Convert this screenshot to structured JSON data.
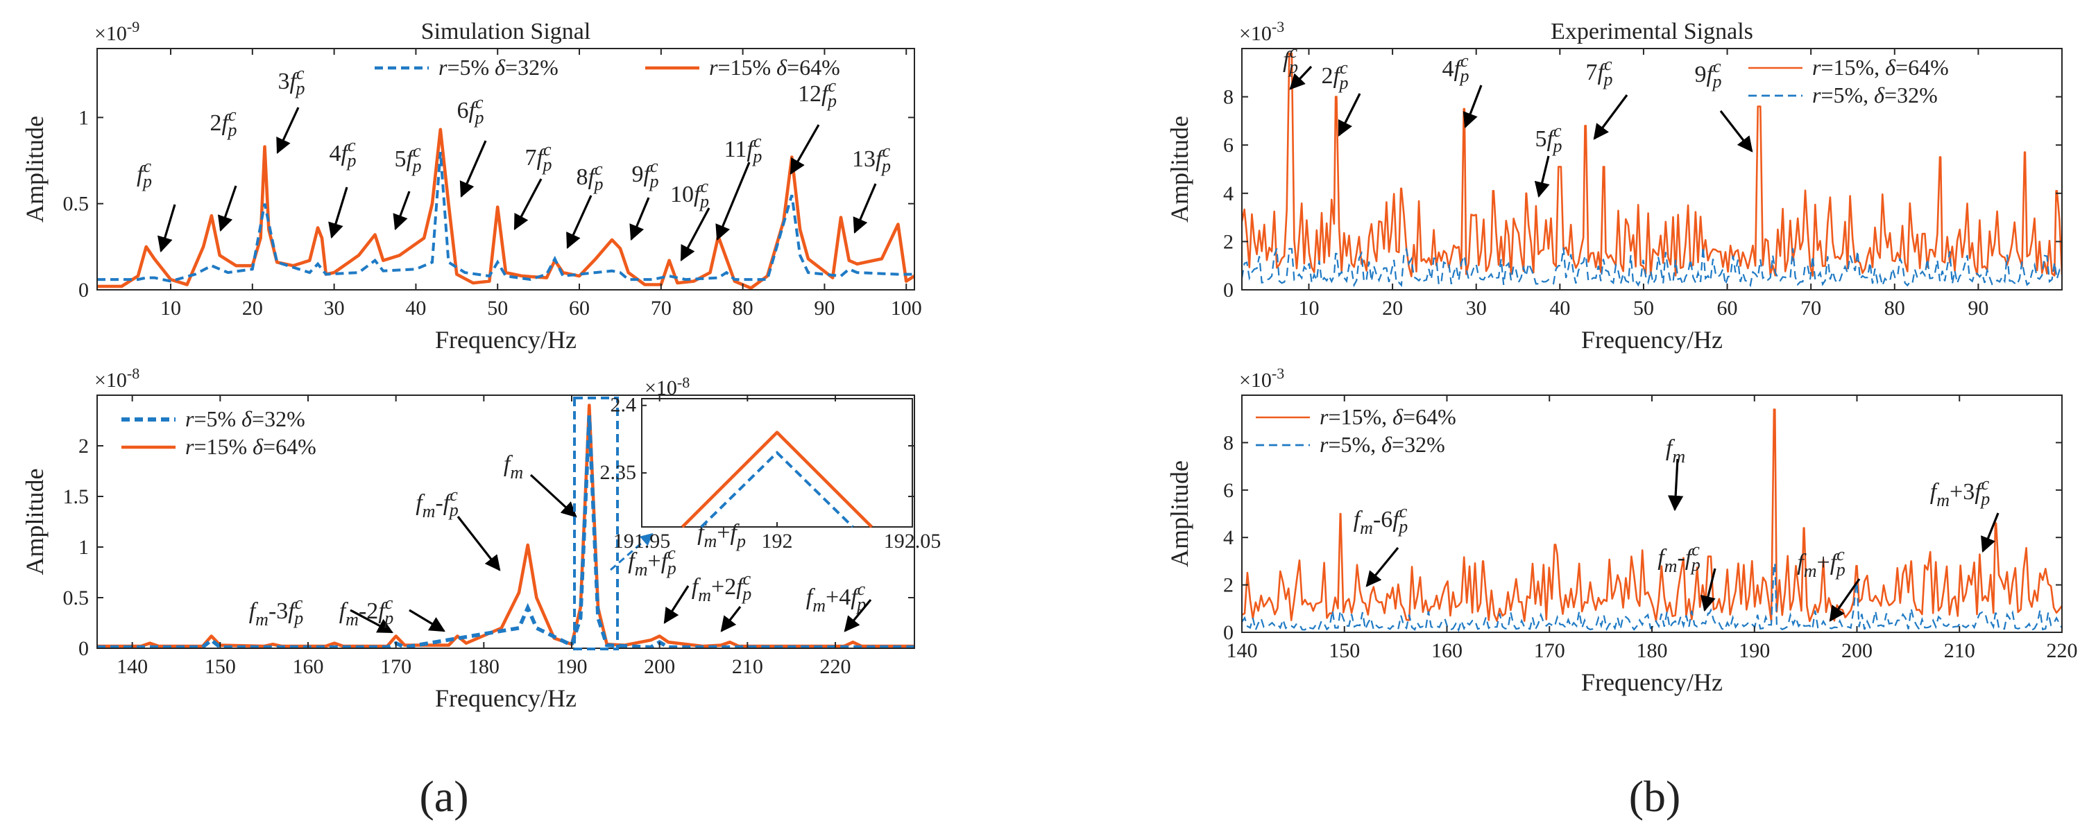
{
  "panel_labels": [
    "(a)",
    "(b)"
  ],
  "colors": {
    "series_r15": "#ef5b1c",
    "series_r5": "#1f7ac4",
    "axis": "#262626",
    "arrow": "#000000"
  },
  "chart_data": [
    {
      "id": "a1",
      "type": "line",
      "title": "Simulation Signal",
      "xlabel": "Frequency/Hz",
      "ylabel": "Amplitude",
      "multiplier": "×10",
      "exponent": "-9",
      "xlim": [
        1,
        101
      ],
      "ylim": [
        0,
        1.4
      ],
      "xticks": [
        10,
        20,
        30,
        40,
        50,
        60,
        70,
        80,
        90,
        100
      ],
      "yticks": [
        0,
        0.5,
        1
      ],
      "legend": [
        {
          "series": "blue",
          "r": "r",
          "rval": "=5% ",
          "d": "δ",
          "dval": "=32%"
        },
        {
          "series": "orange",
          "r": "r",
          "rval": "=15% ",
          "d": "δ",
          "dval": "=64%"
        }
      ],
      "series": [
        {
          "name": "r=15% δ=64%",
          "color": "orange",
          "x": [
            1,
            4,
            6,
            7,
            8,
            10,
            12,
            14,
            15,
            16,
            18,
            20,
            21,
            21.5,
            22,
            23,
            25,
            27,
            28,
            28.5,
            29,
            30,
            33,
            35,
            36,
            38,
            41,
            42,
            43,
            44,
            45,
            47,
            49,
            50,
            51,
            53,
            56,
            57,
            58,
            60,
            62,
            64,
            65,
            66,
            68,
            70,
            71,
            72,
            74,
            76,
            77,
            78,
            79,
            81,
            83,
            85,
            86,
            87,
            88,
            91,
            92,
            93,
            94,
            97,
            99,
            100,
            101
          ],
          "y": [
            0.02,
            0.02,
            0.08,
            0.25,
            0.18,
            0.06,
            0.03,
            0.25,
            0.43,
            0.2,
            0.14,
            0.14,
            0.3,
            0.83,
            0.35,
            0.16,
            0.14,
            0.17,
            0.36,
            0.3,
            0.09,
            0.1,
            0.2,
            0.32,
            0.17,
            0.2,
            0.3,
            0.5,
            0.93,
            0.5,
            0.09,
            0.04,
            0.05,
            0.48,
            0.1,
            0.08,
            0.07,
            0.17,
            0.1,
            0.08,
            0.18,
            0.29,
            0.24,
            0.1,
            0.03,
            0.03,
            0.17,
            0.04,
            0.05,
            0.1,
            0.31,
            0.18,
            0.05,
            0.01,
            0.08,
            0.4,
            0.77,
            0.35,
            0.18,
            0.07,
            0.42,
            0.17,
            0.15,
            0.18,
            0.38,
            0.05,
            0.08
          ]
        },
        {
          "name": "r=5% δ=32%",
          "color": "blue",
          "x": [
            1,
            6,
            7,
            8,
            10,
            13,
            15,
            17,
            20,
            21.5,
            23,
            27,
            28,
            29,
            33,
            35,
            36,
            40,
            42,
            43,
            44,
            46,
            49,
            50,
            51,
            54,
            56,
            57,
            58,
            62,
            64,
            65,
            66,
            69,
            71,
            73,
            77,
            78,
            79,
            83,
            86,
            87,
            88,
            92,
            93,
            94,
            99,
            101
          ],
          "y": [
            0.06,
            0.06,
            0.07,
            0.07,
            0.05,
            0.09,
            0.14,
            0.1,
            0.12,
            0.5,
            0.16,
            0.1,
            0.15,
            0.09,
            0.1,
            0.17,
            0.11,
            0.12,
            0.16,
            0.8,
            0.16,
            0.1,
            0.08,
            0.16,
            0.08,
            0.06,
            0.09,
            0.18,
            0.08,
            0.1,
            0.11,
            0.1,
            0.06,
            0.06,
            0.08,
            0.06,
            0.07,
            0.1,
            0.06,
            0.06,
            0.55,
            0.2,
            0.1,
            0.08,
            0.12,
            0.1,
            0.09,
            0.09
          ]
        }
      ],
      "annotations": [
        {
          "c": "",
          "sym": "f",
          "sub": "p",
          "sup": "c",
          "tail": ""
        },
        {
          "c": "2",
          "sym": "f",
          "sub": "p",
          "sup": "c",
          "tail": ""
        },
        {
          "c": "3",
          "sym": "f",
          "sub": "p",
          "sup": "c",
          "tail": ""
        },
        {
          "c": "4",
          "sym": "f",
          "sub": "p",
          "sup": "c",
          "tail": ""
        },
        {
          "c": "5",
          "sym": "f",
          "sub": "p",
          "sup": "c",
          "tail": ""
        },
        {
          "c": "6",
          "sym": "f",
          "sub": "p",
          "sup": "c",
          "tail": ""
        },
        {
          "c": "7",
          "sym": "f",
          "sub": "p",
          "sup": "c",
          "tail": ""
        },
        {
          "c": "8",
          "sym": "f",
          "sub": "p",
          "sup": "c",
          "tail": ""
        },
        {
          "c": "9",
          "sym": "f",
          "sub": "p",
          "sup": "c",
          "tail": ""
        },
        {
          "c": "10",
          "sym": "f",
          "sub": "p",
          "sup": "c",
          "tail": ""
        },
        {
          "c": "11",
          "sym": "f",
          "sub": "p",
          "sup": "c",
          "tail": ""
        },
        {
          "c": "12",
          "sym": "f",
          "sub": "p",
          "sup": "c",
          "tail": ""
        },
        {
          "c": "13",
          "sym": "f",
          "sub": "p",
          "sup": "c",
          "tail": ""
        }
      ]
    },
    {
      "id": "a2",
      "type": "line",
      "title": "",
      "xlabel": "Frequency/Hz",
      "ylabel": "Amplitude",
      "multiplier": "×10",
      "exponent": "-8",
      "xlim": [
        136,
        229
      ],
      "ylim": [
        0,
        2.5
      ],
      "xticks": [
        140,
        150,
        160,
        170,
        180,
        190,
        200,
        210,
        220
      ],
      "yticks": [
        0,
        0.5,
        1,
        1.5,
        2
      ],
      "legend": [
        {
          "series": "blue",
          "r": "r",
          "rval": "=5% ",
          "d": "δ",
          "dval": "=32%"
        },
        {
          "series": "orange",
          "r": "r",
          "rval": "=15% ",
          "d": "δ",
          "dval": "=64%"
        }
      ],
      "series": [
        {
          "name": "r=15% δ=64%",
          "color": "orange",
          "x": [
            136,
            141,
            142,
            143,
            148,
            149,
            150,
            155,
            156,
            157,
            162,
            163,
            164,
            169,
            170,
            171,
            176,
            177,
            178,
            182,
            184,
            185,
            186,
            188,
            190,
            191,
            192,
            193,
            194,
            196,
            199,
            200,
            201,
            205,
            207,
            208,
            209,
            214,
            221,
            222,
            223,
            229
          ],
          "y": [
            0.02,
            0.02,
            0.05,
            0.02,
            0.02,
            0.12,
            0.03,
            0.02,
            0.04,
            0.02,
            0.02,
            0.05,
            0.02,
            0.02,
            0.12,
            0.03,
            0.03,
            0.12,
            0.05,
            0.2,
            0.55,
            1.02,
            0.5,
            0.1,
            0.04,
            0.4,
            2.4,
            0.4,
            0.04,
            0.03,
            0.08,
            0.12,
            0.06,
            0.02,
            0.03,
            0.06,
            0.02,
            0.02,
            0.02,
            0.06,
            0.02,
            0.02
          ]
        },
        {
          "name": "r=5% δ=32%",
          "color": "blue",
          "x": [
            136,
            148,
            149,
            150,
            169,
            170,
            171,
            184,
            185,
            186,
            190,
            191,
            192,
            193,
            194,
            199,
            200,
            201,
            229
          ],
          "y": [
            0.01,
            0.01,
            0.08,
            0.01,
            0.01,
            0.05,
            0.01,
            0.2,
            0.4,
            0.2,
            0.03,
            0.3,
            2.3,
            0.3,
            0.03,
            0.01,
            0.06,
            0.01,
            0.01
          ]
        }
      ],
      "inset": {
        "multiplier": "×10",
        "exponent": "-8",
        "xlim": [
          191.95,
          192.05
        ],
        "ylim": [
          2.31,
          2.405
        ],
        "xticks": [
          "191.95",
          "192",
          "192.05"
        ],
        "yticks": [
          "2.35",
          "2.4"
        ],
        "orange": {
          "x": [
            191.965,
            192.0,
            192.035
          ],
          "y": [
            2.31,
            2.38,
            2.31
          ]
        },
        "blue": {
          "x": [
            191.972,
            192.0,
            192.028
          ],
          "y": [
            2.31,
            2.365,
            2.31
          ]
        }
      },
      "annotations": [
        {
          "pre": "",
          "sym": "f",
          "sub": "m",
          "op": "",
          "c": "",
          "sym2": "",
          "sub2": "",
          "sup2": "",
          "tail": ""
        },
        {
          "pre": "",
          "sym": "f",
          "sub": "m",
          "op": "-",
          "c": "",
          "sym2": "f",
          "sub2": "p",
          "sup2": "c",
          "tail": ""
        },
        {
          "pre": "",
          "sym": "f",
          "sub": "m",
          "op": "-",
          "c": "3",
          "sym2": "f",
          "sub2": "p",
          "sup2": "c",
          "tail": ""
        },
        {
          "pre": "",
          "sym": "f",
          "sub": "m",
          "op": "-",
          "c": "2",
          "sym2": "f",
          "sub2": "p",
          "sup2": "c",
          "tail": ""
        },
        {
          "pre": "",
          "sym": "f",
          "sub": "m",
          "op": "+",
          "c": "",
          "sym2": "f",
          "sub2": "p",
          "sup2": "c",
          "tail": ""
        },
        {
          "pre": "",
          "sym": "f",
          "sub": "m",
          "op": "+",
          "c": "",
          "sym2": "f",
          "sub2": "p",
          "sup2": "",
          "tail": ""
        },
        {
          "pre": "",
          "sym": "f",
          "sub": "m",
          "op": "+",
          "c": "2",
          "sym2": "f",
          "sub2": "p",
          "sup2": "c",
          "tail": ""
        },
        {
          "pre": "",
          "sym": "f",
          "sub": "m",
          "op": "+",
          "c": "4",
          "sym2": "f",
          "sub2": "p",
          "sup2": "c",
          "tail": ""
        }
      ]
    },
    {
      "id": "b1",
      "type": "line",
      "title": "Experimental Signals",
      "xlabel": "Frequency/Hz",
      "ylabel": "Amplitude",
      "multiplier": "×10",
      "exponent": "-3",
      "xlim": [
        2,
        100
      ],
      "ylim": [
        0,
        10
      ],
      "xticks": [
        10,
        20,
        30,
        40,
        50,
        60,
        70,
        80,
        90
      ],
      "yticks": [
        0,
        2,
        4,
        6,
        8
      ],
      "legend": [
        {
          "series": "orange",
          "r": "r",
          "rval": "=15%, ",
          "d": "δ",
          "dval": "=64%"
        },
        {
          "series": "blue",
          "r": "r",
          "rval": "=5%, ",
          "d": "δ",
          "dval": "=32%"
        }
      ],
      "series": [
        {
          "name": "r=15%, δ=64%",
          "color": "orange",
          "noise": {
            "seed": 7,
            "points": 330,
            "base": 1.5,
            "spread": 1.9
          },
          "peaks": [
            [
              7.8,
              9.8
            ],
            [
              13.2,
              8.0
            ],
            [
              28.6,
              7.5
            ],
            [
              36.0,
              4.0
            ],
            [
              40.0,
              5.1
            ],
            [
              43.0,
              6.8
            ],
            [
              45.3,
              5.1
            ],
            [
              63.8,
              7.6
            ],
            [
              85.5,
              5.5
            ],
            [
              95.6,
              5.7
            ],
            [
              99.3,
              4.1
            ],
            [
              21.0,
              4.2
            ],
            [
              32.0,
              4.1
            ]
          ]
        },
        {
          "name": "r=5%, δ=32%",
          "color": "blue",
          "noise": {
            "seed": 3,
            "points": 330,
            "base": 0.5,
            "spread": 0.9
          },
          "peaks": [
            [
              7.8,
              1.7
            ],
            [
              13.2,
              1.5
            ],
            [
              28.6,
              1.4
            ],
            [
              43.0,
              1.4
            ]
          ]
        }
      ],
      "annotations": [
        {
          "c": "",
          "sym": "f",
          "sub": "p",
          "sup": "c",
          "tail": ""
        },
        {
          "c": "2",
          "sym": "f",
          "sub": "p",
          "sup": "c",
          "tail": ""
        },
        {
          "c": "4",
          "sym": "f",
          "sub": "p",
          "sup": "c",
          "tail": ""
        },
        {
          "c": "5",
          "sym": "f",
          "sub": "p",
          "sup": "c",
          "tail": ""
        },
        {
          "c": "7",
          "sym": "f",
          "sub": "p",
          "sup": "c",
          "tail": ""
        },
        {
          "c": "9",
          "sym": "f",
          "sub": "p",
          "sup": "c",
          "tail": ""
        }
      ]
    },
    {
      "id": "b2",
      "type": "line",
      "title": "",
      "xlabel": "Frequency/Hz",
      "ylabel": "Amplitude",
      "multiplier": "×10",
      "exponent": "-3",
      "xlim": [
        140,
        220
      ],
      "ylim": [
        0,
        10
      ],
      "xticks": [
        140,
        150,
        160,
        170,
        180,
        190,
        200,
        210,
        220
      ],
      "yticks": [
        0,
        2,
        4,
        6,
        8
      ],
      "legend": [
        {
          "series": "orange",
          "r": "r",
          "rval": "=15%, ",
          "d": "δ",
          "dval": "=64%"
        },
        {
          "series": "blue",
          "r": "r",
          "rval": "=5%, ",
          "d": "δ",
          "dval": "=32%"
        }
      ],
      "series": [
        {
          "name": "r=15%, δ=64%",
          "color": "orange",
          "noise": {
            "seed": 11,
            "points": 300,
            "base": 1.3,
            "spread": 1.6
          },
          "peaks": [
            [
              149.6,
              5.0
            ],
            [
              170.6,
              3.7
            ],
            [
              185.6,
              3.2
            ],
            [
              192.0,
              9.4
            ],
            [
              194.8,
              4.4
            ],
            [
              200.0,
              2.8
            ],
            [
              205.3,
              3.0
            ],
            [
              213.5,
              4.6
            ],
            [
              163.5,
              3.0
            ],
            [
              178.0,
              3.2
            ]
          ]
        },
        {
          "name": "r=5%, δ=32%",
          "color": "blue",
          "noise": {
            "seed": 5,
            "points": 300,
            "base": 0.25,
            "spread": 0.55
          },
          "peaks": [
            [
              149.6,
              0.9
            ],
            [
              185.6,
              0.8
            ],
            [
              192.0,
              2.9
            ],
            [
              200.0,
              2.1
            ],
            [
              213.5,
              0.8
            ]
          ]
        }
      ],
      "annotations": [
        {
          "pre": "",
          "sym": "f",
          "sub": "m",
          "op": "",
          "c": "",
          "sym2": "",
          "sub2": "",
          "sup2": "",
          "tail": ""
        },
        {
          "pre": "",
          "sym": "f",
          "sub": "m",
          "op": "-",
          "c": "6",
          "sym2": "f",
          "sub2": "p",
          "sup2": "c",
          "tail": ""
        },
        {
          "pre": "",
          "sym": "f",
          "sub": "m",
          "op": "-",
          "c": "",
          "sym2": "f",
          "sub2": "p",
          "sup2": "c",
          "tail": ""
        },
        {
          "pre": "",
          "sym": "f",
          "sub": "m",
          "op": "+",
          "c": "",
          "sym2": "f",
          "sub2": "p",
          "sup2": "c",
          "tail": ""
        },
        {
          "pre": "",
          "sym": "f",
          "sub": "m",
          "op": "+",
          "c": "3",
          "sym2": "f",
          "sub2": "p",
          "sup2": "c",
          "tail": ""
        }
      ]
    }
  ]
}
